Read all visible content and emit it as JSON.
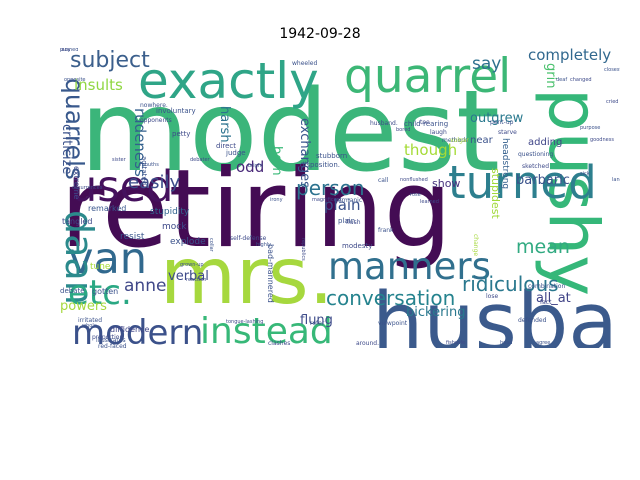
{
  "title": "1942-09-28",
  "word_cloud": {
    "words": [
      {
        "text": "modest",
        "weight": 1.0,
        "color": "#3bb57a"
      },
      {
        "text": "retiring",
        "weight": 0.96,
        "color": "#440c54"
      },
      {
        "text": "husband",
        "weight": 0.72,
        "color": "#3b5a8c"
      },
      {
        "text": "mrs.",
        "weight": 0.7,
        "color": "#a6d83e"
      },
      {
        "text": "pushy",
        "weight": 0.62,
        "color": "#35b779"
      },
      {
        "text": "exactly",
        "weight": 0.45,
        "color": "#2fa587"
      },
      {
        "text": "quarrel",
        "weight": 0.42,
        "color": "#3cb776"
      },
      {
        "text": "turned",
        "weight": 0.4,
        "color": "#2d7f8e"
      },
      {
        "text": "used",
        "weight": 0.38,
        "color": "#45115d"
      },
      {
        "text": "van",
        "weight": 0.38,
        "color": "#31698e"
      },
      {
        "text": "daan",
        "weight": 0.34,
        "color": "#2b8a8c"
      },
      {
        "text": "manners",
        "weight": 0.33,
        "color": "#31708e"
      },
      {
        "text": "instead",
        "weight": 0.32,
        "color": "#37b878"
      },
      {
        "text": "modern",
        "weight": 0.3,
        "color": "#3b518a"
      },
      {
        "text": "etc.",
        "weight": 0.3,
        "color": "#2aa883"
      },
      {
        "text": "subject",
        "weight": 0.2,
        "color": "#3b5f8c"
      },
      {
        "text": "quarrels",
        "weight": 0.22,
        "color": "#38588c"
      },
      {
        "text": "person",
        "weight": 0.18,
        "color": "#2c728e"
      },
      {
        "text": "conversation",
        "weight": 0.18,
        "color": "#25838e"
      },
      {
        "text": "ridiculous",
        "weight": 0.18,
        "color": "#2a788e"
      },
      {
        "text": "mean",
        "weight": 0.17,
        "color": "#31aa81"
      },
      {
        "text": "easily",
        "weight": 0.16,
        "color": "#3d4d8a"
      },
      {
        "text": "say",
        "weight": 0.15,
        "color": "#2d708e"
      },
      {
        "text": "anne",
        "weight": 0.15,
        "color": "#3f4788"
      },
      {
        "text": "completely",
        "weight": 0.13,
        "color": "#31688e"
      },
      {
        "text": "insults",
        "weight": 0.13,
        "color": "#90d743"
      },
      {
        "text": "rudeness",
        "weight": 0.13,
        "color": "#33608d"
      },
      {
        "text": "odd",
        "weight": 0.13,
        "color": "#482878"
      },
      {
        "text": "criticize",
        "weight": 0.12,
        "color": "#3b528b"
      },
      {
        "text": "harsh",
        "weight": 0.12,
        "color": "#2c728e"
      },
      {
        "text": "exchanges",
        "weight": 0.12,
        "color": "#39568c"
      },
      {
        "text": "though",
        "weight": 0.13,
        "color": "#a5db36"
      },
      {
        "text": "outgrew",
        "weight": 0.12,
        "color": "#29798e"
      },
      {
        "text": "grin",
        "weight": 0.12,
        "color": "#4ac16d"
      },
      {
        "text": "barbaric",
        "weight": 0.12,
        "color": "#3b528b"
      },
      {
        "text": "verbal",
        "weight": 0.12,
        "color": "#3e4a89"
      },
      {
        "text": "plain",
        "weight": 0.13,
        "color": "#3b528b"
      },
      {
        "text": "born",
        "weight": 0.12,
        "color": "#38b977"
      },
      {
        "text": "all_at",
        "weight": 0.12,
        "color": "#414487"
      },
      {
        "text": "powers",
        "weight": 0.12,
        "color": "#a6d83e"
      },
      {
        "text": "bickering",
        "weight": 0.12,
        "color": "#2a788e"
      },
      {
        "text": "flung",
        "weight": 0.12,
        "color": "#3e4c8a"
      },
      {
        "text": "show",
        "weight": 0.1,
        "color": "#46337e"
      },
      {
        "text": "adding",
        "weight": 0.09,
        "color": "#404688"
      },
      {
        "text": "near",
        "weight": 0.09,
        "color": "#3b528b"
      },
      {
        "text": "stupidest",
        "weight": 0.1,
        "color": "#a0da39"
      },
      {
        "text": "headstrong",
        "weight": 0.08,
        "color": "#35608d"
      },
      {
        "text": "explode",
        "weight": 0.08,
        "color": "#3b528b"
      },
      {
        "text": "stupidity",
        "weight": 0.08,
        "color": "#32648e"
      },
      {
        "text": "mock",
        "weight": 0.08,
        "color": "#3e4a89"
      },
      {
        "text": "resist",
        "weight": 0.08,
        "color": "#39568c"
      },
      {
        "text": "tune",
        "weight": 0.08,
        "color": "#a5db36"
      },
      {
        "text": "gotten",
        "weight": 0.07,
        "color": "#3b528b"
      },
      {
        "text": "diffidence",
        "weight": 0.07,
        "color": "#404688"
      },
      {
        "text": "seethe",
        "weight": 0.07,
        "color": "#3b528b"
      },
      {
        "text": "extreme",
        "weight": 0.07,
        "color": "#3e4a89"
      },
      {
        "text": "remarked",
        "weight": 0.07,
        "color": "#39568c"
      },
      {
        "text": "tangled",
        "weight": 0.07,
        "color": "#3e4a89"
      },
      {
        "text": "debate",
        "weight": 0.06,
        "color": "#3b528b"
      },
      {
        "text": "bad-mannered",
        "weight": 0.07,
        "color": "#3b528b"
      },
      {
        "text": "plain",
        "weight": 0.06,
        "color": "#3b528b"
      },
      {
        "text": "modesty",
        "weight": 0.06,
        "color": "#3e4a89"
      },
      {
        "text": "disposition.",
        "weight": 0.06,
        "color": "#3b528b"
      },
      {
        "text": "stubborn",
        "weight": 0.06,
        "color": "#3b528b"
      },
      {
        "text": "direct",
        "weight": 0.06,
        "color": "#3e4a89"
      },
      {
        "text": "judge",
        "weight": 0.06,
        "color": "#3b528b"
      },
      {
        "text": "petty",
        "weight": 0.06,
        "color": "#3e4a89"
      },
      {
        "text": "agitated",
        "weight": 0.06,
        "color": "#3b528b"
      },
      {
        "text": "involuntary",
        "weight": 0.06,
        "color": "#3b528b"
      },
      {
        "text": "opponents",
        "weight": 0.05,
        "color": "#3e4a89"
      },
      {
        "text": "nowhere.",
        "weight": 0.05,
        "color": "#3b528b"
      },
      {
        "text": "child-rearing",
        "weight": 0.06,
        "color": "#3b528b"
      },
      {
        "text": "husband.",
        "weight": 0.05,
        "color": "#3e4a89"
      },
      {
        "text": "wheeled",
        "weight": 0.05,
        "color": "#3b528b"
      },
      {
        "text": "pent-up",
        "weight": 0.05,
        "color": "#3b528b"
      },
      {
        "text": "starve",
        "weight": 0.05,
        "color": "#3e4a89"
      },
      {
        "text": "methods",
        "weight": 0.05,
        "color": "#3b528b"
      },
      {
        "text": "laugh",
        "weight": 0.05,
        "color": "#3e4a89"
      },
      {
        "text": "vulgar",
        "weight": 0.05,
        "color": "#a6d83e"
      },
      {
        "text": "questioning",
        "weight": 0.05,
        "color": "#3b528b"
      },
      {
        "text": "sketched",
        "weight": 0.05,
        "color": "#3e4a89"
      },
      {
        "text": "call",
        "weight": 0.05,
        "color": "#3b528b"
      },
      {
        "text": "toe",
        "weight": 0.05,
        "color": "#3e4a89"
      },
      {
        "text": "germanic",
        "weight": 0.05,
        "color": "#3b528b"
      },
      {
        "text": "flush",
        "weight": 0.05,
        "color": "#3e4a89"
      },
      {
        "text": "frank",
        "weight": 0.05,
        "color": "#3b528b"
      },
      {
        "text": "lose",
        "weight": 0.05,
        "color": "#3e4a89"
      },
      {
        "text": "combination",
        "weight": 0.05,
        "color": "#3b528b"
      },
      {
        "text": "fact",
        "weight": 0.05,
        "color": "#3e4a89"
      },
      {
        "text": "defended",
        "weight": 0.05,
        "color": "#3b528b"
      },
      {
        "text": "change",
        "weight": 0.05,
        "color": "#a6d83e"
      },
      {
        "text": "irritated",
        "weight": 0.05,
        "color": "#3b528b"
      },
      {
        "text": "self-defense",
        "weight": 0.05,
        "color": "#3e4a89"
      },
      {
        "text": "grown-up",
        "weight": 0.04,
        "color": "#3b528b"
      },
      {
        "text": "reaction",
        "weight": 0.04,
        "color": "#3e4a89"
      },
      {
        "text": "collar",
        "weight": 0.04,
        "color": "#3b528b"
      },
      {
        "text": "tongue-lashing",
        "weight": 0.04,
        "color": "#3e4a89"
      },
      {
        "text": "viewpoint",
        "weight": 0.05,
        "color": "#3b528b"
      },
      {
        "text": "clashes",
        "weight": 0.05,
        "color": "#3e4a89"
      },
      {
        "text": "refer",
        "weight": 0.05,
        "color": "#3b528b"
      },
      {
        "text": "around.",
        "weight": 0.05,
        "color": "#3e4a89"
      },
      {
        "text": "behold",
        "weight": 0.05,
        "color": "#3b528b"
      },
      {
        "text": "quickly",
        "weight": 0.05,
        "color": "#3e4a89"
      },
      {
        "text": "red-faced",
        "weight": 0.05,
        "color": "#3b528b"
      },
      {
        "text": "proportion",
        "weight": 0.05,
        "color": "#3e4a89"
      },
      {
        "text": "illustrates",
        "weight": 0.05,
        "color": "#3b528b"
      },
      {
        "text": "fishwife",
        "weight": 0.04,
        "color": "#3e4a89"
      },
      {
        "text": "head",
        "weight": 0.04,
        "color": "#3b528b"
      },
      {
        "text": "occurrences",
        "weight": 0.04,
        "color": "#3e4a89"
      },
      {
        "text": "agree",
        "weight": 0.04,
        "color": "#3b528b"
      },
      {
        "text": "nonflushed",
        "weight": 0.04,
        "color": "#3e4a89"
      },
      {
        "text": "rose",
        "weight": 0.04,
        "color": "#3b528b"
      },
      {
        "text": "learned",
        "weight": 0.03,
        "color": "#3e4a89"
      },
      {
        "text": "highly",
        "weight": 0.03,
        "color": "#3b528b"
      },
      {
        "text": "republics",
        "weight": 0.03,
        "color": "#3e4a89"
      },
      {
        "text": "irony",
        "weight": 0.04,
        "color": "#3b528b"
      },
      {
        "text": "magnificent",
        "weight": 0.03,
        "color": "#3e4a89"
      },
      {
        "text": "landed",
        "weight": 0.03,
        "color": "#3b528b"
      },
      {
        "text": "sick",
        "weight": 0.03,
        "color": "#3e4a89"
      },
      {
        "text": "purpose",
        "weight": 0.03,
        "color": "#3b528b"
      },
      {
        "text": "goodness",
        "weight": 0.03,
        "color": "#3e4a89"
      },
      {
        "text": "opposite",
        "weight": 0.03,
        "color": "#3b528b"
      },
      {
        "text": "sister",
        "weight": 0.03,
        "color": "#3e4a89"
      },
      {
        "text": "mouths",
        "weight": 0.03,
        "color": "#3b528b"
      },
      {
        "text": "debater",
        "weight": 0.03,
        "color": "#3e4a89"
      },
      {
        "text": "bright",
        "weight": 0.03,
        "color": "#3b528b"
      },
      {
        "text": "bored",
        "weight": 0.03,
        "color": "#3e4a89"
      },
      {
        "text": "deaf",
        "weight": 0.03,
        "color": "#3b528b"
      },
      {
        "text": "changed",
        "weight": 0.03,
        "color": "#3e4a89"
      },
      {
        "text": "whole",
        "weight": 0.03,
        "color": "#3b528b"
      },
      {
        "text": "shoes",
        "weight": 0.03,
        "color": "#3e4a89"
      },
      {
        "text": "scold",
        "weight": 0.03,
        "color": "#3b528b"
      },
      {
        "text": "dying",
        "weight": 0.03,
        "color": "#3e4a89"
      },
      {
        "text": "closest",
        "weight": 0.03,
        "color": "#3b528b"
      },
      {
        "text": "cried",
        "weight": 0.03,
        "color": "#3e4a89"
      },
      {
        "text": "pushed",
        "weight": 0.03,
        "color": "#3b528b"
      },
      {
        "text": "lady",
        "weight": 0.03,
        "color": "#3e4a89"
      }
    ]
  }
}
